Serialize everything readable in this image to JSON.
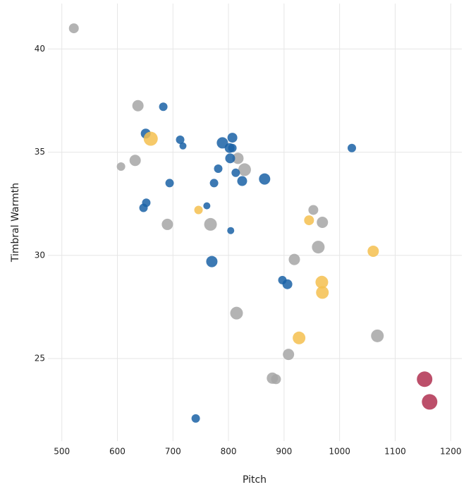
{
  "chart_data": {
    "type": "scatter",
    "x_label": "Pitch",
    "y_label": "Timbral Warmth",
    "xlim": [
      475,
      1220
    ],
    "ylim": [
      21,
      42.2
    ],
    "xticks": [
      500,
      600,
      700,
      800,
      900,
      1000,
      1100,
      1200
    ],
    "yticks": [
      25,
      30,
      35,
      40
    ],
    "grid": true,
    "series": [
      {
        "color": "#a6a6a6",
        "x": [
          521.6,
          637,
          606.5,
          632,
          690,
          767.6,
          817,
          829,
          952.7,
          969,
          961.6,
          918.5,
          814.5,
          1068,
          908,
          879,
          885.5
        ],
        "y": [
          41.0,
          37.25,
          34.3,
          34.6,
          31.5,
          31.5,
          34.7,
          34.15,
          32.2,
          31.6,
          30.4,
          29.8,
          27.2,
          26.1,
          25.2,
          24.05,
          24.0
        ],
        "sizes": [
          7,
          8,
          6,
          8,
          8,
          9,
          8,
          9,
          7,
          8,
          9,
          8,
          9,
          9,
          8,
          8,
          7
        ]
      },
      {
        "color": "#1a62a6",
        "x": [
          682.6,
          651,
          713,
          718,
          789,
          807,
          802,
          807,
          803,
          781.5,
          813,
          824.6,
          865,
          694,
          774,
          652,
          647,
          761,
          804,
          770,
          897,
          906,
          1022,
          741
        ],
        "y": [
          37.2,
          35.9,
          35.6,
          35.3,
          35.45,
          35.7,
          35.2,
          35.2,
          34.7,
          34.2,
          34.0,
          33.6,
          33.7,
          33.5,
          33.5,
          32.55,
          32.3,
          32.4,
          31.2,
          29.7,
          28.8,
          28.6,
          35.2,
          22.1
        ],
        "sizes": [
          6,
          7,
          6,
          5,
          8,
          7,
          7,
          6,
          7,
          6,
          6,
          7,
          8,
          6,
          6,
          6,
          6,
          5,
          5,
          8,
          6,
          7,
          6,
          6
        ]
      },
      {
        "color": "#f5bf4f",
        "x": [
          660,
          746,
          945,
          1060.5,
          968,
          969,
          927
        ],
        "y": [
          35.65,
          32.2,
          31.7,
          30.2,
          28.7,
          28.2,
          26.0
        ],
        "sizes": [
          10,
          6,
          7,
          8,
          9,
          9,
          9
        ]
      },
      {
        "color": "#b03050",
        "x": [
          1153,
          1162
        ],
        "y": [
          24.0,
          22.9
        ],
        "sizes": [
          11,
          11
        ]
      }
    ]
  }
}
